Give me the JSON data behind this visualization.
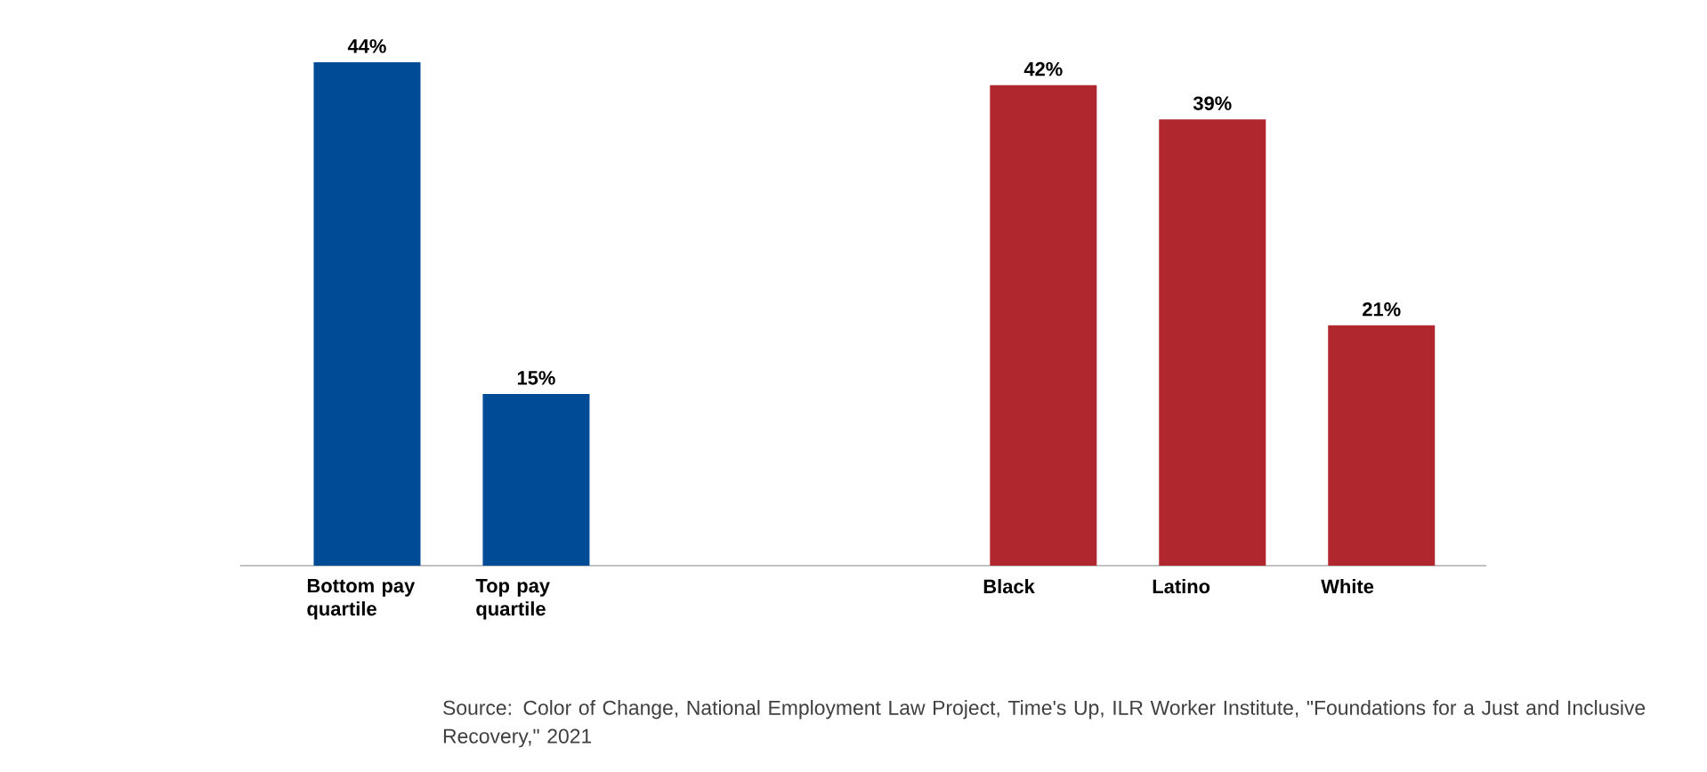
{
  "chart_data": {
    "type": "bar",
    "categories": [
      "Bottom pay quartile",
      "Top pay quartile",
      null,
      null,
      "Black",
      "Latino",
      "White"
    ],
    "values": [
      44,
      15,
      null,
      null,
      42,
      39,
      21
    ],
    "value_labels": [
      "44%",
      "15%",
      null,
      null,
      "42%",
      "39%",
      "21%"
    ],
    "colors": [
      "#004b96",
      "#004b96",
      null,
      null,
      "#b0282e",
      "#b0282e",
      "#b0282e"
    ],
    "annotations": [
      "Source: Color of Change, National Employment Law Project, Time's Up, ILR Worker Institute, \"Foundations for a Just and Inclusive Recovery,\" 2021"
    ]
  }
}
